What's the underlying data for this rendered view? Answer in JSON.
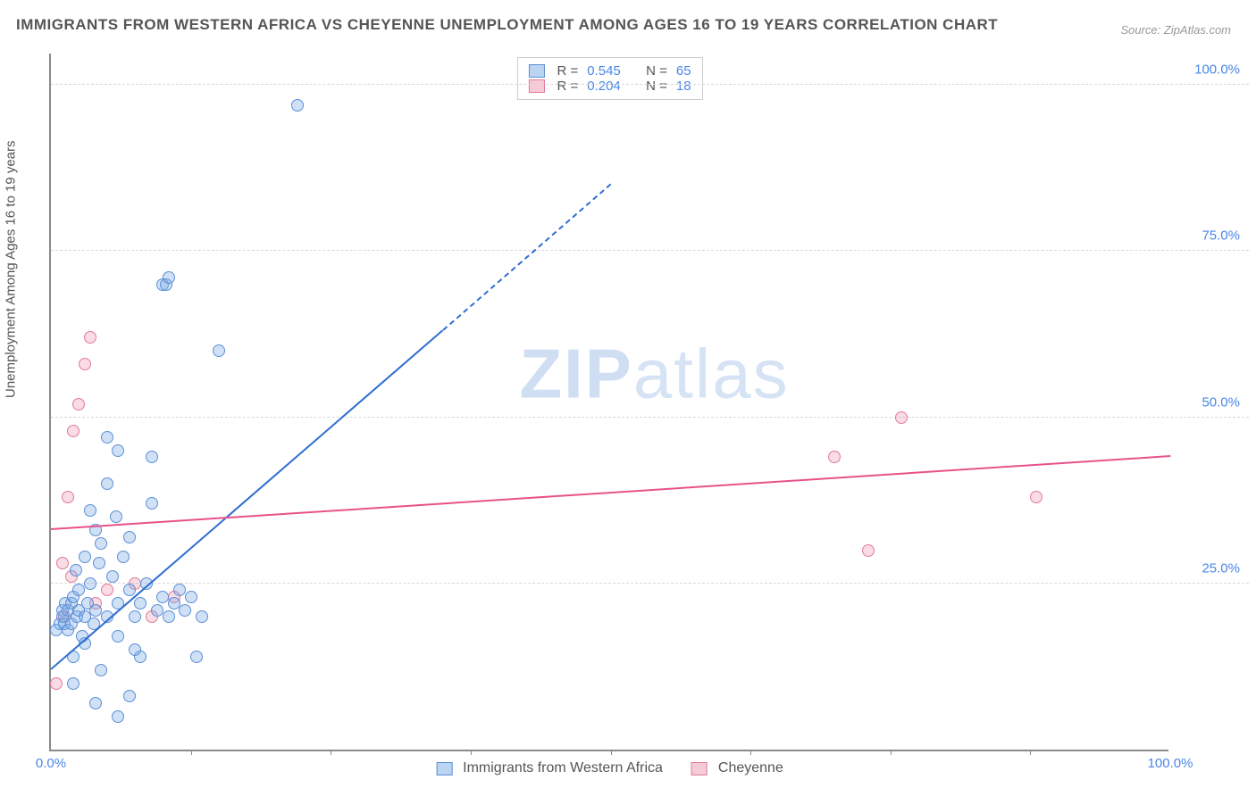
{
  "title": "IMMIGRANTS FROM WESTERN AFRICA VS CHEYENNE UNEMPLOYMENT AMONG AGES 16 TO 19 YEARS CORRELATION CHART",
  "source": "Source: ZipAtlas.com",
  "ylabel": "Unemployment Among Ages 16 to 19 years",
  "watermark_a": "ZIP",
  "watermark_b": "atlas",
  "chart": {
    "type": "scatter",
    "xlim": [
      0,
      100
    ],
    "ylim": [
      0,
      105
    ],
    "background_color": "#ffffff",
    "grid_color": "#d8d8d8",
    "axis_color": "#8a8a8a",
    "ytick_values": [
      25,
      50,
      75,
      100
    ],
    "ytick_labels": [
      "25.0%",
      "50.0%",
      "75.0%",
      "100.0%"
    ],
    "xtick_values": [
      0,
      100
    ],
    "xtick_labels": [
      "0.0%",
      "100.0%"
    ],
    "xtickmarks": [
      12.5,
      25,
      37.5,
      50,
      62.5,
      75,
      87.5
    ]
  },
  "series": {
    "blue": {
      "label": "Immigrants from Western Africa",
      "color_fill": "rgba(120,170,230,0.35)",
      "color_border": "#5b8fd6",
      "marker_radius": 7,
      "R_label": "R =",
      "R": "0.545",
      "N_label": "N =",
      "N": "65",
      "trend": {
        "x1": 0,
        "y1": 12,
        "x2_solid": 35,
        "y2_solid": 63,
        "x2": 50,
        "y2": 85,
        "color": "#2f6ed1",
        "width": 2
      },
      "points": [
        [
          0.5,
          18
        ],
        [
          0.8,
          19
        ],
        [
          1.0,
          20
        ],
        [
          1.0,
          21
        ],
        [
          1.2,
          19
        ],
        [
          1.3,
          22
        ],
        [
          1.5,
          18
        ],
        [
          1.5,
          21
        ],
        [
          1.8,
          19
        ],
        [
          1.8,
          22
        ],
        [
          2.0,
          23
        ],
        [
          2.0,
          14
        ],
        [
          2.2,
          27
        ],
        [
          2.3,
          20
        ],
        [
          2.5,
          21
        ],
        [
          2.5,
          24
        ],
        [
          2.8,
          17
        ],
        [
          3.0,
          20
        ],
        [
          3.0,
          29
        ],
        [
          3.3,
          22
        ],
        [
          3.5,
          25
        ],
        [
          3.5,
          36
        ],
        [
          3.8,
          19
        ],
        [
          4.0,
          21
        ],
        [
          4.0,
          33
        ],
        [
          4.3,
          28
        ],
        [
          4.5,
          31
        ],
        [
          5.0,
          20
        ],
        [
          5.0,
          40
        ],
        [
          5.5,
          26
        ],
        [
          5.8,
          35
        ],
        [
          6.0,
          22
        ],
        [
          6.0,
          45
        ],
        [
          6.5,
          29
        ],
        [
          7.0,
          24
        ],
        [
          7.0,
          32
        ],
        [
          7.5,
          20
        ],
        [
          8.0,
          22
        ],
        [
          8.0,
          14
        ],
        [
          8.5,
          25
        ],
        [
          9.0,
          37
        ],
        [
          9.5,
          21
        ],
        [
          10.0,
          23
        ],
        [
          10.5,
          20
        ],
        [
          11.0,
          22
        ],
        [
          11.5,
          24
        ],
        [
          12.0,
          21
        ],
        [
          12.5,
          23
        ],
        [
          13.0,
          14
        ],
        [
          13.5,
          20
        ],
        [
          4.5,
          12
        ],
        [
          3.0,
          16
        ],
        [
          6.0,
          17
        ],
        [
          7.5,
          15
        ],
        [
          5.0,
          47
        ],
        [
          9.0,
          44
        ],
        [
          10.0,
          70
        ],
        [
          10.3,
          70
        ],
        [
          10.5,
          71
        ],
        [
          15.0,
          60
        ],
        [
          6.0,
          5
        ],
        [
          7.0,
          8
        ],
        [
          4.0,
          7
        ],
        [
          2.0,
          10
        ],
        [
          22.0,
          97
        ]
      ]
    },
    "pink": {
      "label": "Cheyenne",
      "color_fill": "rgba(235,140,165,0.30)",
      "color_border": "#e07a9a",
      "marker_radius": 7,
      "R_label": "R =",
      "R": "0.204",
      "N_label": "N =",
      "N": "18",
      "trend": {
        "x1": 0,
        "y1": 33,
        "x2": 100,
        "y2": 44,
        "color": "#e8518a",
        "width": 2
      },
      "points": [
        [
          0.5,
          10
        ],
        [
          1.0,
          28
        ],
        [
          1.5,
          38
        ],
        [
          2.0,
          48
        ],
        [
          2.5,
          52
        ],
        [
          3.0,
          58
        ],
        [
          3.5,
          62
        ],
        [
          1.2,
          20
        ],
        [
          1.8,
          26
        ],
        [
          4.0,
          22
        ],
        [
          5.0,
          24
        ],
        [
          7.5,
          25
        ],
        [
          9.0,
          20
        ],
        [
          11.0,
          23
        ],
        [
          70.0,
          44
        ],
        [
          73.0,
          30
        ],
        [
          76.0,
          50
        ],
        [
          88.0,
          38
        ]
      ]
    }
  },
  "legend_top": {
    "rows": [
      {
        "swatch": "blue",
        "r_label": "R =",
        "r": "0.545",
        "n_label": "N =",
        "n": "65"
      },
      {
        "swatch": "pink",
        "r_label": "R =",
        "r": "0.204",
        "n_label": "N =",
        "n": "18"
      }
    ]
  },
  "legend_bottom": {
    "items": [
      {
        "swatch": "blue",
        "label": "Immigrants from Western Africa"
      },
      {
        "swatch": "pink",
        "label": "Cheyenne"
      }
    ]
  }
}
